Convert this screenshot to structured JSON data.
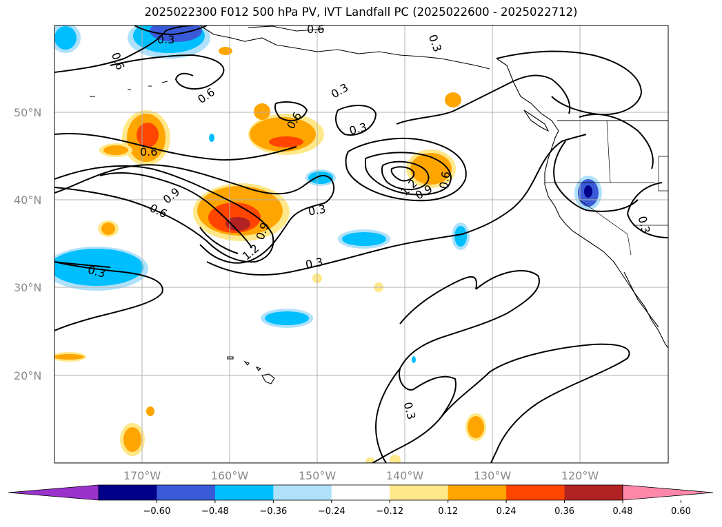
{
  "title": "2025022300 F012 500 hPa PV, IVT Landfall PC (2025022600 - 2025022712)",
  "lat_labels": [
    "50°N",
    "40°N",
    "30°N",
    "20°N"
  ],
  "lon_labels": [
    "170°W",
    "160°W",
    "150°W",
    "140°W",
    "130°W",
    "120°W"
  ],
  "contour_labels": [
    "0.6",
    "0.3",
    "0.6",
    "0.3",
    "0.6",
    "0.3",
    "0.6",
    "0.3",
    "0.6",
    "0.9",
    "0.6",
    "0.9",
    "1.2",
    "0.3",
    "0.3",
    "0.3",
    "1.2",
    "0.9",
    "0.6",
    "0.3",
    "0.3"
  ],
  "colorbar": {
    "colors": [
      "#9933cc",
      "#00008b",
      "#3a5bd9",
      "#00bfff",
      "#afe1fa",
      "#ffffff",
      "#ffe88a",
      "#ffa500",
      "#ff4500",
      "#b22222",
      "#ff88aa"
    ],
    "tick_labels": [
      "−0.60",
      "−0.48",
      "−0.36",
      "−0.24",
      "−0.12",
      "0.12",
      "0.24",
      "0.36",
      "0.48",
      "0.60"
    ]
  }
}
